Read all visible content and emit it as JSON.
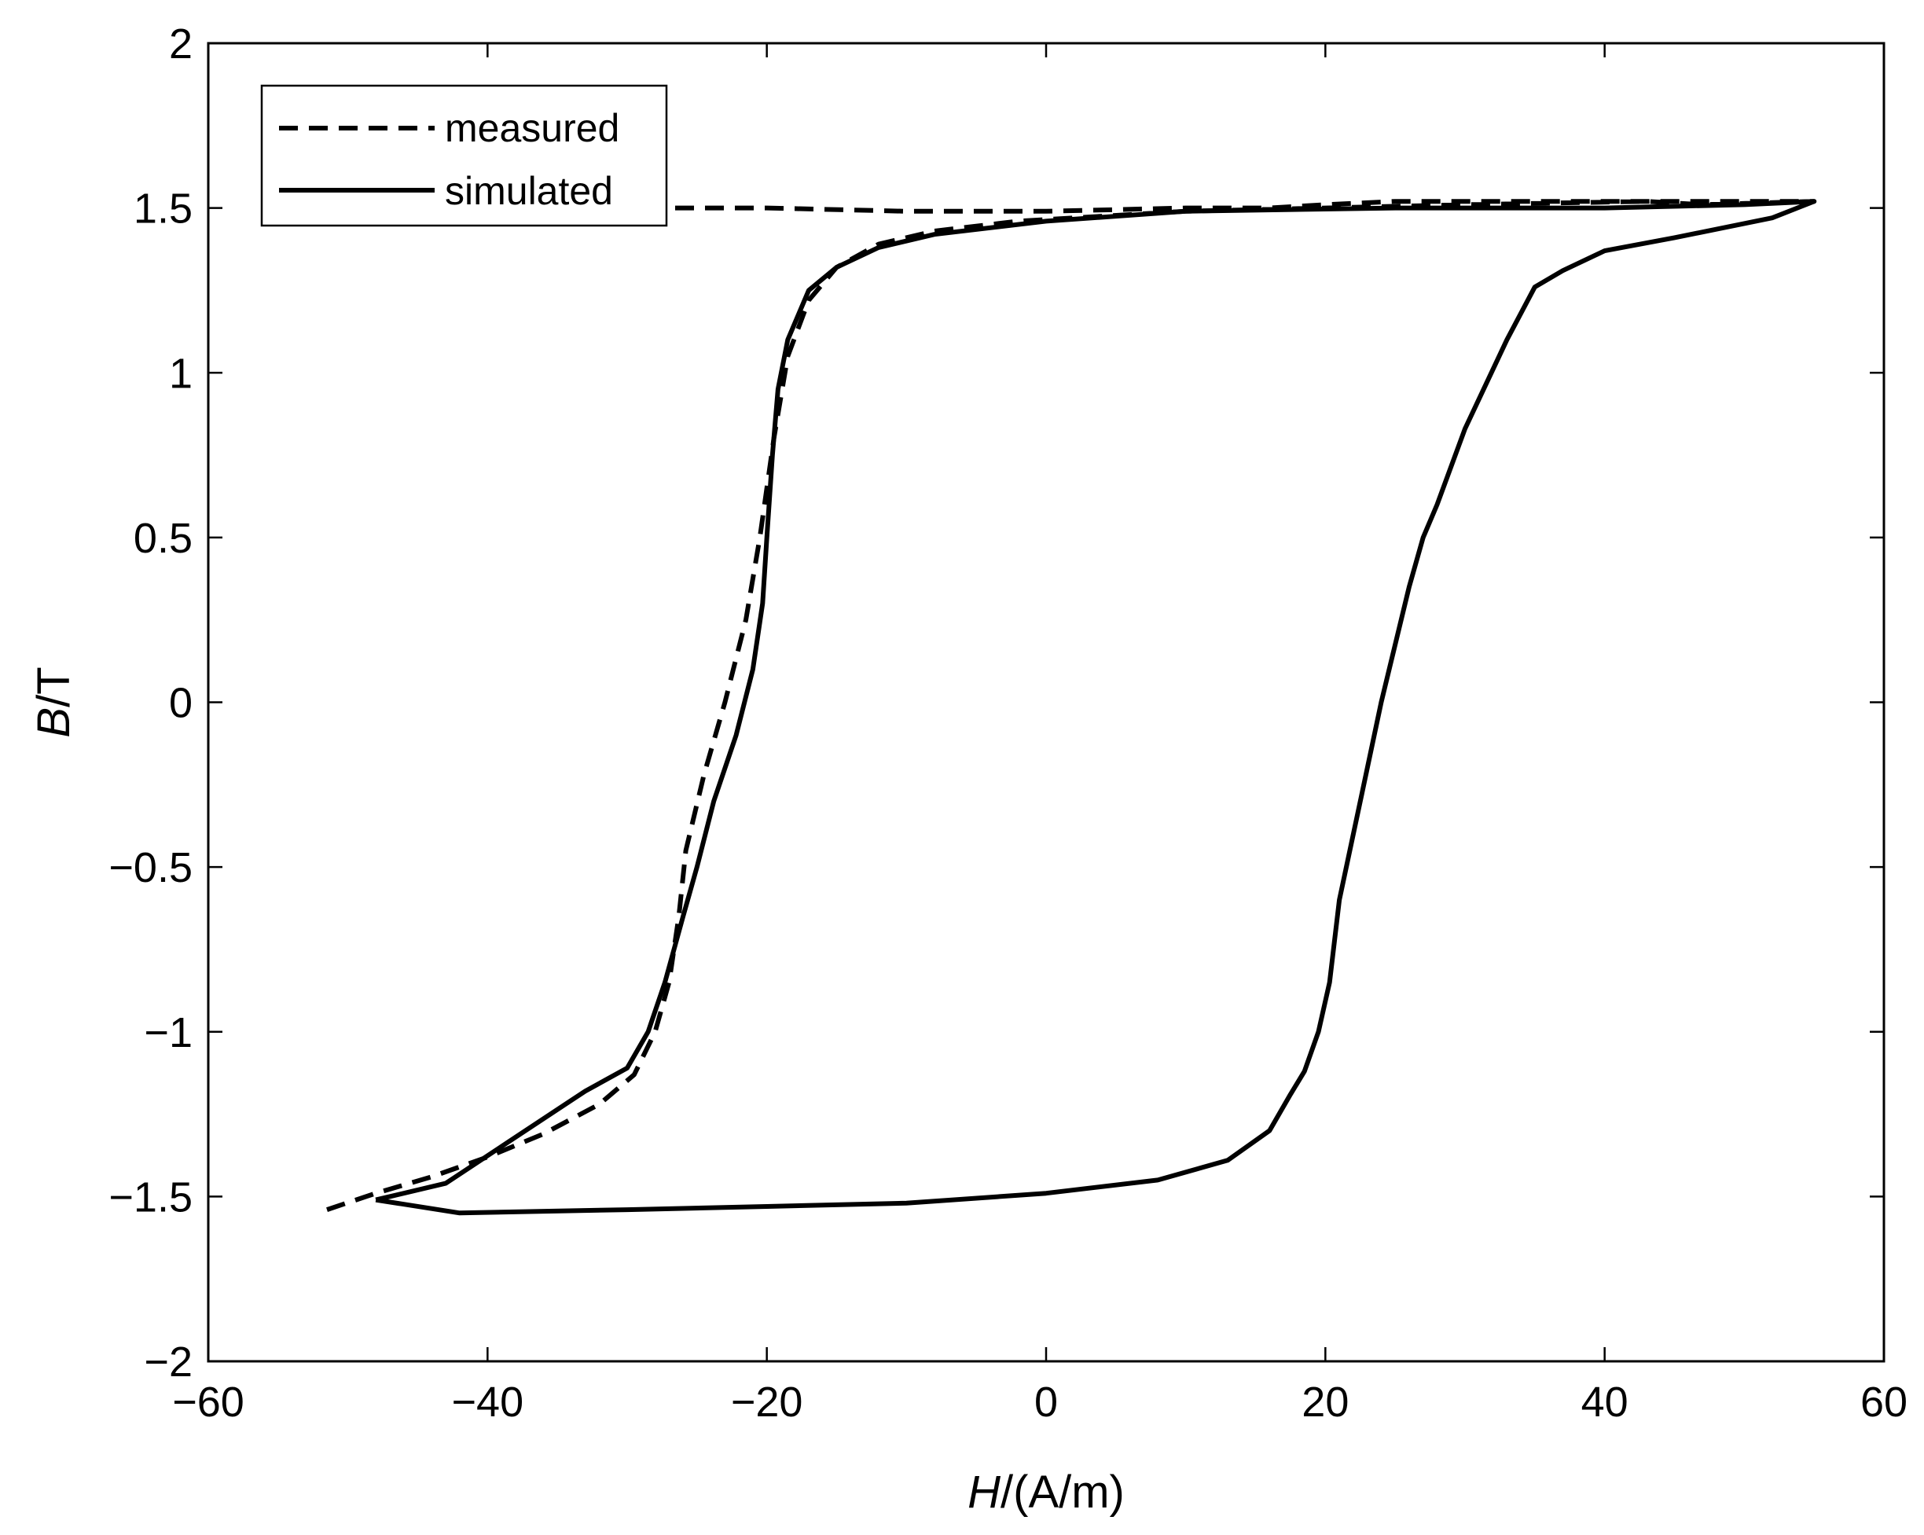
{
  "chart_data": {
    "type": "line",
    "xlabel_parts": {
      "italic": "H",
      "rest": "/(A/m)"
    },
    "ylabel_parts": {
      "italic": "B",
      "rest": "/T"
    },
    "xlim": [
      -60,
      60
    ],
    "ylim": [
      -2,
      2
    ],
    "x_ticks": [
      -60,
      -40,
      -20,
      0,
      20,
      40,
      60
    ],
    "x_tick_labels": [
      "−60",
      "−40",
      "−20",
      "0",
      "20",
      "40",
      "60"
    ],
    "y_ticks": [
      2,
      1.5,
      1,
      0.5,
      0,
      -0.5,
      -1,
      -1.5,
      -2
    ],
    "y_tick_labels": [
      "2",
      "1.5",
      "1",
      "0.5",
      "0",
      "−0.5",
      "−1",
      "−1.5",
      "−2"
    ],
    "grid": false,
    "legend_position": "top-left",
    "series": [
      {
        "name": "measured",
        "style": "dashed",
        "color": "#000000",
        "x": [
          -51.5,
          -48,
          -44,
          -40,
          -36,
          -32,
          -29.5,
          -28,
          -27,
          -26.3,
          -25.8,
          -24.5,
          -23,
          -21.5,
          -20.5,
          -19.5,
          -18.5,
          -17,
          -15,
          -12,
          -8,
          -2,
          10,
          30,
          43,
          47,
          55,
          49,
          43,
          40,
          35,
          30,
          25,
          20,
          16,
          10,
          0,
          -10,
          -20,
          -30,
          -40,
          -51.5
        ],
        "y": [
          -1.54,
          -1.49,
          -1.44,
          -1.38,
          -1.31,
          -1.22,
          -1.13,
          -1.0,
          -0.85,
          -0.65,
          -0.45,
          -0.22,
          0.0,
          0.25,
          0.5,
          0.8,
          1.05,
          1.22,
          1.32,
          1.39,
          1.43,
          1.46,
          1.49,
          1.51,
          1.52,
          1.51,
          1.52,
          1.52,
          1.52,
          1.52,
          1.52,
          1.52,
          1.52,
          1.51,
          1.5,
          1.5,
          1.49,
          1.49,
          1.5,
          1.5,
          1.51,
          1.52
        ]
      },
      {
        "name": "simulated",
        "style": "solid",
        "color": "#000000",
        "x": [
          -48,
          -43,
          -38,
          -33,
          -30,
          -28.5,
          -27.3,
          -26,
          -25,
          -23.8,
          -22.2,
          -21,
          -20.3,
          -20,
          -19.6,
          -19.2,
          -18.5,
          -17,
          -15,
          -12,
          -8,
          0,
          10,
          25,
          40,
          50,
          55,
          52,
          45,
          40,
          37,
          35,
          33,
          30,
          28,
          27,
          26,
          24,
          22.5,
          21,
          20.3,
          19.5,
          18.5,
          17.5,
          16,
          13,
          8,
          0,
          -10,
          -20,
          -30,
          -42,
          -48
        ],
        "y": [
          -1.51,
          -1.46,
          -1.32,
          -1.18,
          -1.11,
          -1.0,
          -0.85,
          -0.65,
          -0.5,
          -0.3,
          -0.1,
          0.1,
          0.3,
          0.5,
          0.75,
          0.95,
          1.1,
          1.25,
          1.32,
          1.38,
          1.42,
          1.46,
          1.49,
          1.5,
          1.5,
          1.51,
          1.52,
          1.47,
          1.41,
          1.37,
          1.31,
          1.26,
          1.1,
          0.83,
          0.6,
          0.5,
          0.35,
          0.0,
          -0.3,
          -0.6,
          -0.85,
          -1.0,
          -1.12,
          -1.19,
          -1.3,
          -1.39,
          -1.45,
          -1.49,
          -1.52,
          -1.53,
          -1.54,
          -1.55,
          -1.51
        ]
      }
    ]
  }
}
